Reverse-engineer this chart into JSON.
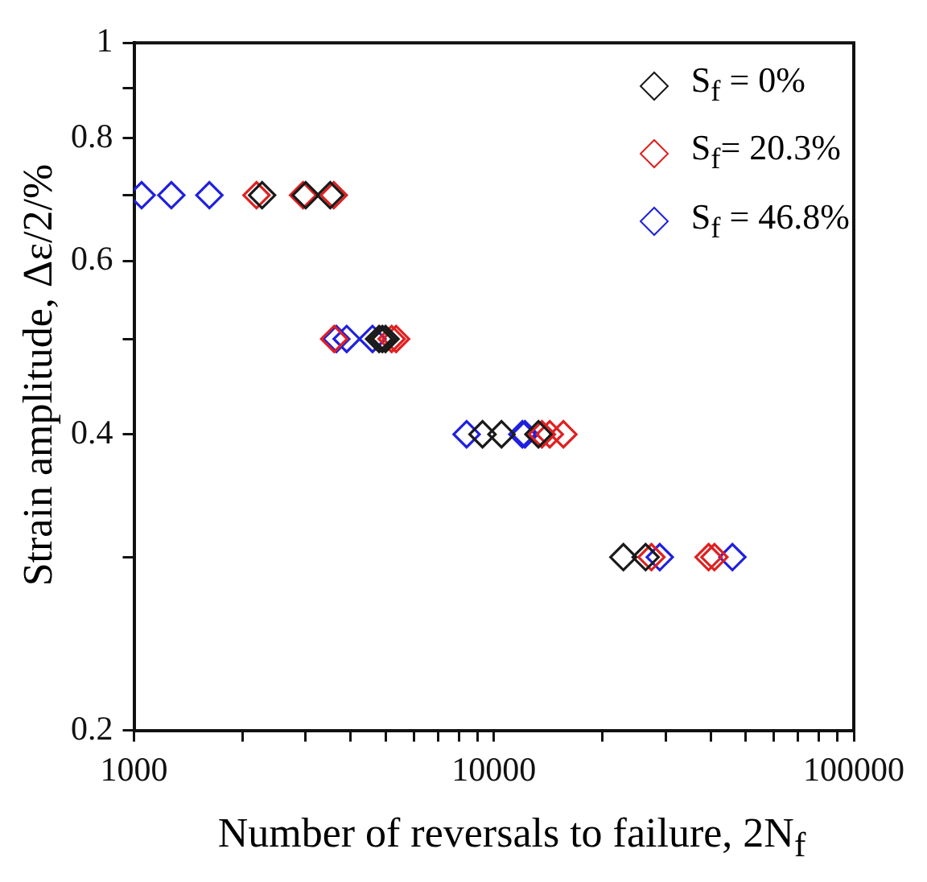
{
  "chart_data": {
    "type": "scatter",
    "xlabel": "Number of reversals to failure, 2N$_{f}$",
    "ylabel": "Strain amplitude, Δε/2/%",
    "log": "xy",
    "grid": false,
    "legend": "top right",
    "marker": "diamond",
    "xlim": [
      1000,
      100000
    ],
    "xticks": [
      1000,
      {
        "value": 2000,
        "label": null
      },
      {
        "value": 3000,
        "label": null
      },
      {
        "value": 4000,
        "label": null
      },
      {
        "value": 5000,
        "label": null
      },
      {
        "value": 6000,
        "label": null
      },
      {
        "value": 7000,
        "label": null
      },
      {
        "value": 8000,
        "label": null
      },
      {
        "value": 9000,
        "label": null
      },
      10000,
      {
        "value": 20000,
        "label": null
      },
      {
        "value": 30000,
        "label": null
      },
      {
        "value": 40000,
        "label": null
      },
      {
        "value": 50000,
        "label": null
      },
      {
        "value": 60000,
        "label": null
      },
      {
        "value": 70000,
        "label": null
      },
      {
        "value": 80000,
        "label": null
      },
      {
        "value": 90000,
        "label": null
      },
      100000
    ],
    "ylim": [
      0.2,
      1
    ],
    "yticks": [
      0.2,
      {
        "value": 0.3,
        "label": null
      },
      0.4,
      {
        "value": 0.5,
        "label": null
      },
      0.6,
      {
        "value": 0.7,
        "label": null
      },
      0.8,
      {
        "value": 0.9,
        "label": null
      },
      1
    ],
    "series": [
      {
        "name": "S$_{f}$ = 0%",
        "color": "#1a1a1a",
        "x": [
          2270,
          3000,
          3510,
          4800,
          4900,
          5000,
          9300,
          10500,
          13300,
          22900,
          26400
        ],
        "values": [
          0.7,
          0.7,
          0.7,
          0.5,
          0.5,
          0.5,
          0.4,
          0.4,
          0.4,
          0.3,
          0.3
        ]
      },
      {
        "name": "S$_{f}$= 20.3%",
        "color": "#e02020",
        "x": [
          2190,
          2950,
          3590,
          3600,
          5200,
          5350,
          13600,
          14300,
          15600,
          27400,
          39500,
          41000
        ],
        "values": [
          0.7,
          0.7,
          0.7,
          0.5,
          0.5,
          0.5,
          0.4,
          0.4,
          0.4,
          0.3,
          0.3,
          0.3
        ]
      },
      {
        "name": "S$_{f}$ = 46.8%",
        "color": "#2020e0",
        "x": [
          1050,
          1270,
          1620,
          3650,
          3900,
          4600,
          8400,
          12000,
          12200,
          28900,
          46000
        ],
        "values": [
          0.7,
          0.7,
          0.7,
          0.5,
          0.5,
          0.5,
          0.4,
          0.4,
          0.4,
          0.3,
          0.3
        ]
      }
    ]
  }
}
